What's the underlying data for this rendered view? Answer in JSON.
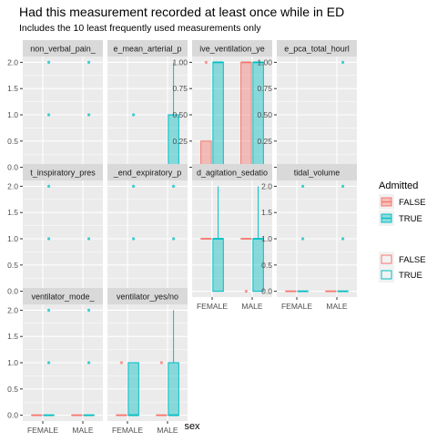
{
  "title": "Had this measurement recorded at least once while in ED",
  "subtitle": "Includes the 10 least frequently used measurements only",
  "xlabel": "sex",
  "legend": {
    "title": "Admitted",
    "box_entries": [
      "FALSE",
      "TRUE"
    ],
    "point_entries": [
      "FALSE",
      "TRUE"
    ]
  },
  "colors": {
    "false": "#F8766D",
    "true": "#00BFC4",
    "panel": "#EBEBEB",
    "strip": "#D9D9D9"
  },
  "chart_data": {
    "type": "boxplot",
    "categories": [
      "FEMALE",
      "MALE"
    ],
    "groups": [
      "FALSE",
      "TRUE"
    ],
    "panels": [
      {
        "strip": "non_verbal_pain_",
        "ymax": 2,
        "yticks": [
          "0.0",
          "0.5",
          "1.0",
          "1.5",
          "2.0"
        ],
        "show_y": true,
        "show_x": false,
        "boxes": [
          {
            "sex": "FEMALE",
            "group": "FALSE",
            "q1": 0,
            "med": 0,
            "q3": 0,
            "lo": 0,
            "hi": 0,
            "out": []
          },
          {
            "sex": "FEMALE",
            "group": "TRUE",
            "q1": 0,
            "med": 0,
            "q3": 0,
            "lo": 0,
            "hi": 0,
            "out": [
              1,
              2
            ]
          },
          {
            "sex": "MALE",
            "group": "FALSE",
            "q1": 0,
            "med": 0,
            "q3": 0,
            "lo": 0,
            "hi": 0,
            "out": []
          },
          {
            "sex": "MALE",
            "group": "TRUE",
            "q1": 0,
            "med": 0,
            "q3": 0,
            "lo": 0,
            "hi": 0,
            "out": [
              1,
              2
            ]
          }
        ]
      },
      {
        "strip": "e_mean_arterial_p",
        "ymax": 2,
        "yticks": [],
        "show_y": false,
        "show_x": false,
        "boxes": [
          {
            "sex": "FEMALE",
            "group": "FALSE",
            "q1": 0,
            "med": 0,
            "q3": 0,
            "lo": 0,
            "hi": 0,
            "out": []
          },
          {
            "sex": "FEMALE",
            "group": "TRUE",
            "q1": 0,
            "med": 0,
            "q3": 0,
            "lo": 0,
            "hi": 0,
            "out": [
              1
            ]
          },
          {
            "sex": "MALE",
            "group": "FALSE",
            "q1": 0,
            "med": 0,
            "q3": 0,
            "lo": 0,
            "hi": 0,
            "out": []
          },
          {
            "sex": "MALE",
            "group": "TRUE",
            "q1": 0,
            "med": 0,
            "q3": 1,
            "lo": 0,
            "hi": 2,
            "out": []
          }
        ]
      },
      {
        "strip": "ive_ventilation_ye",
        "ymax": 1,
        "yticks": [
          "0.00",
          "0.25",
          "0.50",
          "0.75",
          "1.00"
        ],
        "show_y": true,
        "show_x": false,
        "boxes": [
          {
            "sex": "FEMALE",
            "group": "FALSE",
            "q1": 0,
            "med": 0,
            "q3": 0.25,
            "lo": 0,
            "hi": 0.25,
            "out": [
              1
            ]
          },
          {
            "sex": "FEMALE",
            "group": "TRUE",
            "q1": 0,
            "med": 1,
            "q3": 1,
            "lo": 0,
            "hi": 1,
            "out": []
          },
          {
            "sex": "MALE",
            "group": "FALSE",
            "q1": 0,
            "med": 1,
            "q3": 1,
            "lo": 0,
            "hi": 1,
            "out": []
          },
          {
            "sex": "MALE",
            "group": "TRUE",
            "q1": 0,
            "med": 1,
            "q3": 1,
            "lo": 0,
            "hi": 1,
            "out": []
          }
        ]
      },
      {
        "strip": "e_pca_total_hourl",
        "ymax": 1,
        "yticks": [
          "0.00",
          "0.25",
          "0.50",
          "0.75",
          "1.00"
        ],
        "show_y": true,
        "show_x": false,
        "boxes": [
          {
            "sex": "FEMALE",
            "group": "FALSE",
            "q1": 0,
            "med": 0,
            "q3": 0,
            "lo": 0,
            "hi": 0,
            "out": []
          },
          {
            "sex": "FEMALE",
            "group": "TRUE",
            "q1": 0,
            "med": 0,
            "q3": 0,
            "lo": 0,
            "hi": 0,
            "out": []
          },
          {
            "sex": "MALE",
            "group": "FALSE",
            "q1": 0,
            "med": 0,
            "q3": 0,
            "lo": 0,
            "hi": 0,
            "out": []
          },
          {
            "sex": "MALE",
            "group": "TRUE",
            "q1": 0,
            "med": 0,
            "q3": 0,
            "lo": 0,
            "hi": 0,
            "out": [
              1
            ]
          }
        ]
      },
      {
        "strip": "t_inspiratory_pres",
        "ymax": 2,
        "yticks": [
          "0.0",
          "0.5",
          "1.0",
          "1.5",
          "2.0"
        ],
        "show_y": true,
        "show_x": false,
        "boxes": [
          {
            "sex": "FEMALE",
            "group": "FALSE",
            "q1": 0,
            "med": 0,
            "q3": 0,
            "lo": 0,
            "hi": 0,
            "out": []
          },
          {
            "sex": "FEMALE",
            "group": "TRUE",
            "q1": 0,
            "med": 0,
            "q3": 0,
            "lo": 0,
            "hi": 0,
            "out": [
              1,
              2
            ]
          },
          {
            "sex": "MALE",
            "group": "FALSE",
            "q1": 0,
            "med": 0,
            "q3": 0,
            "lo": 0,
            "hi": 0,
            "out": []
          },
          {
            "sex": "MALE",
            "group": "TRUE",
            "q1": 0,
            "med": 0,
            "q3": 0,
            "lo": 0,
            "hi": 0,
            "out": [
              1
            ]
          }
        ]
      },
      {
        "strip": "_end_expiratory_p",
        "ymax": 2,
        "yticks": [],
        "show_y": false,
        "show_x": false,
        "boxes": [
          {
            "sex": "FEMALE",
            "group": "FALSE",
            "q1": 0,
            "med": 0,
            "q3": 0,
            "lo": 0,
            "hi": 0,
            "out": []
          },
          {
            "sex": "FEMALE",
            "group": "TRUE",
            "q1": 0,
            "med": 0,
            "q3": 0,
            "lo": 0,
            "hi": 0,
            "out": [
              1,
              2
            ]
          },
          {
            "sex": "MALE",
            "group": "FALSE",
            "q1": 0,
            "med": 0,
            "q3": 0,
            "lo": 0,
            "hi": 0,
            "out": []
          },
          {
            "sex": "MALE",
            "group": "TRUE",
            "q1": 0,
            "med": 0,
            "q3": 0,
            "lo": 0,
            "hi": 0,
            "out": [
              1,
              2
            ]
          }
        ]
      },
      {
        "strip": "d_agitation_sedatio",
        "ymax": 2,
        "yticks": [],
        "show_y": false,
        "show_x": true,
        "boxes": [
          {
            "sex": "FEMALE",
            "group": "FALSE",
            "q1": 1,
            "med": 1,
            "q3": 1,
            "lo": 1,
            "hi": 1,
            "out": []
          },
          {
            "sex": "FEMALE",
            "group": "TRUE",
            "q1": 0,
            "med": 1,
            "q3": 1,
            "lo": 0,
            "hi": 2,
            "out": []
          },
          {
            "sex": "MALE",
            "group": "FALSE",
            "q1": 1,
            "med": 1,
            "q3": 1,
            "lo": 1,
            "hi": 1,
            "out": [
              0
            ]
          },
          {
            "sex": "MALE",
            "group": "TRUE",
            "q1": 0,
            "med": 1,
            "q3": 1,
            "lo": 0,
            "hi": 2,
            "out": []
          }
        ]
      },
      {
        "strip": "tidal_volume",
        "ymax": 2,
        "yticks": [
          "0.0",
          "0.5",
          "1.0",
          "1.5",
          "2.0"
        ],
        "show_y": true,
        "show_x": true,
        "boxes": [
          {
            "sex": "FEMALE",
            "group": "FALSE",
            "q1": 0,
            "med": 0,
            "q3": 0,
            "lo": 0,
            "hi": 0,
            "out": []
          },
          {
            "sex": "FEMALE",
            "group": "TRUE",
            "q1": 0,
            "med": 0,
            "q3": 0,
            "lo": 0,
            "hi": 0,
            "out": [
              1,
              2
            ]
          },
          {
            "sex": "MALE",
            "group": "FALSE",
            "q1": 0,
            "med": 0,
            "q3": 0,
            "lo": 0,
            "hi": 0,
            "out": []
          },
          {
            "sex": "MALE",
            "group": "TRUE",
            "q1": 0,
            "med": 0,
            "q3": 0,
            "lo": 0,
            "hi": 0,
            "out": [
              1,
              2
            ]
          }
        ]
      },
      {
        "strip": "ventilator_mode_",
        "ymax": 2,
        "yticks": [
          "0.0",
          "0.5",
          "1.0",
          "1.5",
          "2.0"
        ],
        "show_y": true,
        "show_x": true,
        "boxes": [
          {
            "sex": "FEMALE",
            "group": "FALSE",
            "q1": 0,
            "med": 0,
            "q3": 0,
            "lo": 0,
            "hi": 0,
            "out": []
          },
          {
            "sex": "FEMALE",
            "group": "TRUE",
            "q1": 0,
            "med": 0,
            "q3": 0,
            "lo": 0,
            "hi": 0,
            "out": [
              1,
              2
            ]
          },
          {
            "sex": "MALE",
            "group": "FALSE",
            "q1": 0,
            "med": 0,
            "q3": 0,
            "lo": 0,
            "hi": 0,
            "out": []
          },
          {
            "sex": "MALE",
            "group": "TRUE",
            "q1": 0,
            "med": 0,
            "q3": 0,
            "lo": 0,
            "hi": 0,
            "out": [
              1,
              2
            ]
          }
        ]
      },
      {
        "strip": "ventilator_yes/no",
        "ymax": 2,
        "yticks": [],
        "show_y": false,
        "show_x": true,
        "boxes": [
          {
            "sex": "FEMALE",
            "group": "FALSE",
            "q1": 0,
            "med": 0,
            "q3": 0,
            "lo": 0,
            "hi": 0,
            "out": [
              1
            ]
          },
          {
            "sex": "FEMALE",
            "group": "TRUE",
            "q1": 0,
            "med": 0,
            "q3": 1,
            "lo": 0,
            "hi": 1,
            "out": []
          },
          {
            "sex": "MALE",
            "group": "FALSE",
            "q1": 0,
            "med": 0,
            "q3": 0,
            "lo": 0,
            "hi": 0,
            "out": [
              1
            ]
          },
          {
            "sex": "MALE",
            "group": "TRUE",
            "q1": 0,
            "med": 0,
            "q3": 1,
            "lo": 0,
            "hi": 2,
            "out": []
          }
        ]
      }
    ]
  }
}
